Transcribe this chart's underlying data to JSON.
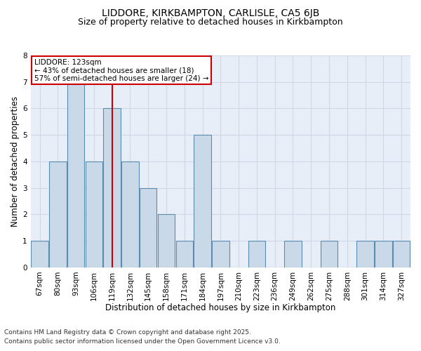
{
  "title1": "LIDDORE, KIRKBAMPTON, CARLISLE, CA5 6JB",
  "title2": "Size of property relative to detached houses in Kirkbampton",
  "xlabel": "Distribution of detached houses by size in Kirkbampton",
  "ylabel": "Number of detached properties",
  "categories": [
    "67sqm",
    "80sqm",
    "93sqm",
    "106sqm",
    "119sqm",
    "132sqm",
    "145sqm",
    "158sqm",
    "171sqm",
    "184sqm",
    "197sqm",
    "210sqm",
    "223sqm",
    "236sqm",
    "249sqm",
    "262sqm",
    "275sqm",
    "288sqm",
    "301sqm",
    "314sqm",
    "327sqm"
  ],
  "values": [
    1,
    4,
    7,
    4,
    6,
    4,
    3,
    2,
    1,
    5,
    1,
    0,
    1,
    0,
    1,
    0,
    1,
    0,
    1,
    1,
    1
  ],
  "bar_color": "#c9d9e8",
  "bar_edge_color": "#5b8db0",
  "vline_x_index": 4,
  "vline_color": "#cc0000",
  "ylim": [
    0,
    8
  ],
  "yticks": [
    0,
    1,
    2,
    3,
    4,
    5,
    6,
    7,
    8
  ],
  "annotation_title": "LIDDORE: 123sqm",
  "annotation_line1": "← 43% of detached houses are smaller (18)",
  "annotation_line2": "57% of semi-detached houses are larger (24) →",
  "annotation_box_color": "#ffffff",
  "annotation_box_edge": "#cc0000",
  "grid_color": "#d0d8e8",
  "background_color": "#e8eef7",
  "footer1": "Contains HM Land Registry data © Crown copyright and database right 2025.",
  "footer2": "Contains public sector information licensed under the Open Government Licence v3.0.",
  "title1_fontsize": 10,
  "title2_fontsize": 9,
  "xlabel_fontsize": 8.5,
  "ylabel_fontsize": 8.5,
  "tick_fontsize": 7.5,
  "footer_fontsize": 6.5,
  "ann_fontsize": 7.5
}
